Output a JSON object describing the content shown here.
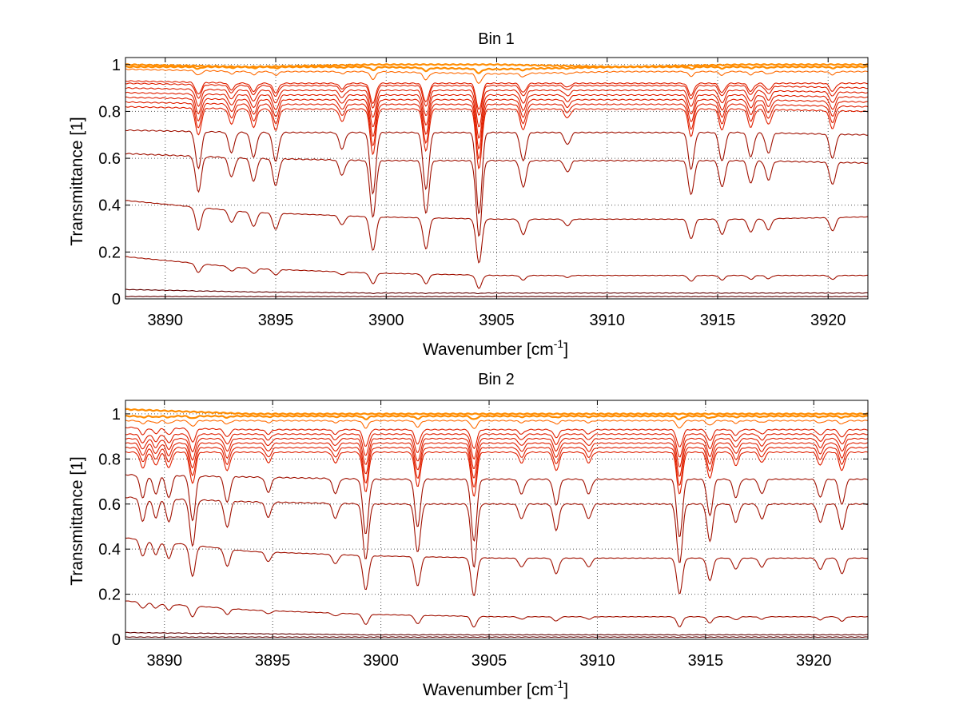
{
  "chart_data": [
    {
      "type": "line",
      "title": "Bin 1",
      "xlabel_main": "Wavenumber [cm",
      "xlabel_sup": "-1",
      "xlabel_end": "]",
      "ylabel": "Transmittance [1]",
      "xlim": [
        3888.2,
        3921.8
      ],
      "ylim": [
        0,
        1.03
      ],
      "xticks": [
        3890,
        3895,
        3900,
        3905,
        3910,
        3915,
        3920
      ],
      "yticks": [
        0,
        0.2,
        0.4,
        0.6,
        0.8,
        1
      ],
      "grid": true,
      "absorption_lines": [
        {
          "x": 3891.5,
          "depth": 0.45
        },
        {
          "x": 3893.0,
          "depth": 0.25
        },
        {
          "x": 3894.0,
          "depth": 0.3
        },
        {
          "x": 3895.0,
          "depth": 0.35
        },
        {
          "x": 3898.0,
          "depth": 0.2
        },
        {
          "x": 3899.4,
          "depth": 0.75
        },
        {
          "x": 3901.8,
          "depth": 0.7
        },
        {
          "x": 3904.2,
          "depth": 1.0
        },
        {
          "x": 3906.2,
          "depth": 0.35
        },
        {
          "x": 3908.2,
          "depth": 0.15
        },
        {
          "x": 3913.8,
          "depth": 0.45
        },
        {
          "x": 3915.2,
          "depth": 0.35
        },
        {
          "x": 3916.5,
          "depth": 0.3
        },
        {
          "x": 3917.3,
          "depth": 0.25
        },
        {
          "x": 3920.2,
          "depth": 0.3
        }
      ],
      "series": [
        {
          "baseline": 1.0,
          "values": [
            1.0,
            0.99,
            1.0,
            1.0,
            0.99,
            1.0,
            1.0
          ]
        },
        {
          "baseline": 0.99,
          "values": [
            0.99,
            0.99,
            0.99,
            0.98,
            0.99,
            0.99,
            0.99
          ]
        },
        {
          "baseline": 0.975,
          "values": [
            0.98,
            0.97,
            0.97,
            0.96,
            0.97,
            0.97,
            0.97
          ]
        },
        {
          "baseline": 0.93,
          "values": [
            0.93,
            0.92,
            0.92,
            0.92,
            0.92,
            0.92,
            0.92
          ]
        },
        {
          "baseline": 0.92,
          "values": [
            0.92,
            0.91,
            0.91,
            0.91,
            0.91,
            0.91,
            0.9
          ]
        },
        {
          "baseline": 0.9,
          "values": [
            0.9,
            0.89,
            0.89,
            0.89,
            0.89,
            0.89,
            0.88
          ]
        },
        {
          "baseline": 0.88,
          "values": [
            0.88,
            0.87,
            0.87,
            0.87,
            0.87,
            0.87,
            0.86
          ]
        },
        {
          "baseline": 0.86,
          "values": [
            0.86,
            0.85,
            0.85,
            0.85,
            0.85,
            0.85,
            0.84
          ]
        },
        {
          "baseline": 0.84,
          "values": [
            0.84,
            0.83,
            0.83,
            0.83,
            0.83,
            0.83,
            0.82
          ]
        },
        {
          "baseline": 0.82,
          "values": [
            0.82,
            0.81,
            0.81,
            0.81,
            0.81,
            0.81,
            0.8
          ]
        },
        {
          "baseline": 0.72,
          "values": [
            0.72,
            0.71,
            0.71,
            0.71,
            0.71,
            0.71,
            0.7
          ]
        },
        {
          "baseline": 0.61,
          "values": [
            0.62,
            0.6,
            0.59,
            0.59,
            0.59,
            0.59,
            0.58
          ]
        },
        {
          "baseline": 0.37,
          "values": [
            0.42,
            0.37,
            0.35,
            0.34,
            0.34,
            0.34,
            0.35
          ]
        },
        {
          "baseline": 0.12,
          "values": [
            0.18,
            0.13,
            0.11,
            0.1,
            0.1,
            0.1,
            0.1
          ]
        },
        {
          "baseline": 0.03,
          "values": [
            0.04,
            0.03,
            0.025,
            0.025,
            0.025,
            0.025,
            0.025
          ]
        },
        {
          "baseline": 0.01,
          "values": [
            0.01,
            0.01,
            0.01,
            0.01,
            0.01,
            0.01,
            0.01
          ]
        }
      ]
    },
    {
      "type": "line",
      "title": "Bin 2",
      "xlabel_main": "Wavenumber [cm",
      "xlabel_sup": "-1",
      "xlabel_end": "]",
      "ylabel": "Transmittance [1]",
      "xlim": [
        3888.2,
        3922.5
      ],
      "ylim": [
        0,
        1.06
      ],
      "xticks": [
        3890,
        3895,
        3900,
        3905,
        3910,
        3915,
        3920
      ],
      "yticks": [
        0,
        0.2,
        0.4,
        0.6,
        0.8,
        1
      ],
      "grid": true,
      "absorption_lines": [
        {
          "x": 3889.0,
          "depth": 0.3
        },
        {
          "x": 3889.6,
          "depth": 0.25
        },
        {
          "x": 3890.2,
          "depth": 0.3
        },
        {
          "x": 3891.3,
          "depth": 0.6
        },
        {
          "x": 3892.9,
          "depth": 0.35
        },
        {
          "x": 3894.8,
          "depth": 0.2
        },
        {
          "x": 3897.9,
          "depth": 0.2
        },
        {
          "x": 3899.3,
          "depth": 0.75
        },
        {
          "x": 3901.7,
          "depth": 0.65
        },
        {
          "x": 3904.3,
          "depth": 0.85
        },
        {
          "x": 3906.5,
          "depth": 0.2
        },
        {
          "x": 3908.1,
          "depth": 0.35
        },
        {
          "x": 3909.6,
          "depth": 0.2
        },
        {
          "x": 3913.8,
          "depth": 0.8
        },
        {
          "x": 3915.2,
          "depth": 0.5
        },
        {
          "x": 3916.4,
          "depth": 0.25
        },
        {
          "x": 3917.6,
          "depth": 0.2
        },
        {
          "x": 3920.3,
          "depth": 0.25
        },
        {
          "x": 3921.3,
          "depth": 0.35
        }
      ],
      "series": [
        {
          "baseline": 1.0,
          "values": [
            1.02,
            1.0,
            1.0,
            1.0,
            1.0,
            1.0,
            1.0
          ]
        },
        {
          "baseline": 0.99,
          "values": [
            0.99,
            0.99,
            0.99,
            0.99,
            0.99,
            0.99,
            0.99
          ]
        },
        {
          "baseline": 0.975,
          "values": [
            0.97,
            0.97,
            0.97,
            0.97,
            0.97,
            0.97,
            0.97
          ]
        },
        {
          "baseline": 0.94,
          "values": [
            0.94,
            0.93,
            0.93,
            0.93,
            0.93,
            0.93,
            0.93
          ]
        },
        {
          "baseline": 0.92,
          "values": [
            0.91,
            0.91,
            0.91,
            0.91,
            0.91,
            0.91,
            0.91
          ]
        },
        {
          "baseline": 0.9,
          "values": [
            0.89,
            0.89,
            0.89,
            0.89,
            0.89,
            0.89,
            0.89
          ]
        },
        {
          "baseline": 0.88,
          "values": [
            0.87,
            0.87,
            0.87,
            0.87,
            0.87,
            0.87,
            0.87
          ]
        },
        {
          "baseline": 0.86,
          "values": [
            0.85,
            0.85,
            0.85,
            0.85,
            0.85,
            0.85,
            0.85
          ]
        },
        {
          "baseline": 0.84,
          "values": [
            0.83,
            0.83,
            0.83,
            0.83,
            0.83,
            0.83,
            0.83
          ]
        },
        {
          "baseline": 0.74,
          "values": [
            0.73,
            0.72,
            0.71,
            0.71,
            0.71,
            0.71,
            0.71
          ]
        },
        {
          "baseline": 0.62,
          "values": [
            0.63,
            0.61,
            0.6,
            0.6,
            0.6,
            0.6,
            0.6
          ]
        },
        {
          "baseline": 0.38,
          "values": [
            0.45,
            0.39,
            0.37,
            0.36,
            0.36,
            0.36,
            0.36
          ]
        },
        {
          "baseline": 0.12,
          "values": [
            0.17,
            0.13,
            0.11,
            0.1,
            0.1,
            0.1,
            0.1
          ]
        },
        {
          "baseline": 0.03,
          "values": [
            0.03,
            0.025,
            0.02,
            0.02,
            0.02,
            0.02,
            0.02
          ]
        },
        {
          "baseline": 0.01,
          "values": [
            0.01,
            0.01,
            0.01,
            0.01,
            0.01,
            0.01,
            0.01
          ]
        }
      ]
    }
  ],
  "colors": {
    "top_curves": [
      "#2ab0e0",
      "#ffb000",
      "#ff8c00",
      "#ff6a00",
      "#ff4500"
    ],
    "mid_curves": "#e02000",
    "low_curves": "#a01000",
    "darkest": "#600000",
    "axis": "#000000",
    "grid": "#555555"
  }
}
